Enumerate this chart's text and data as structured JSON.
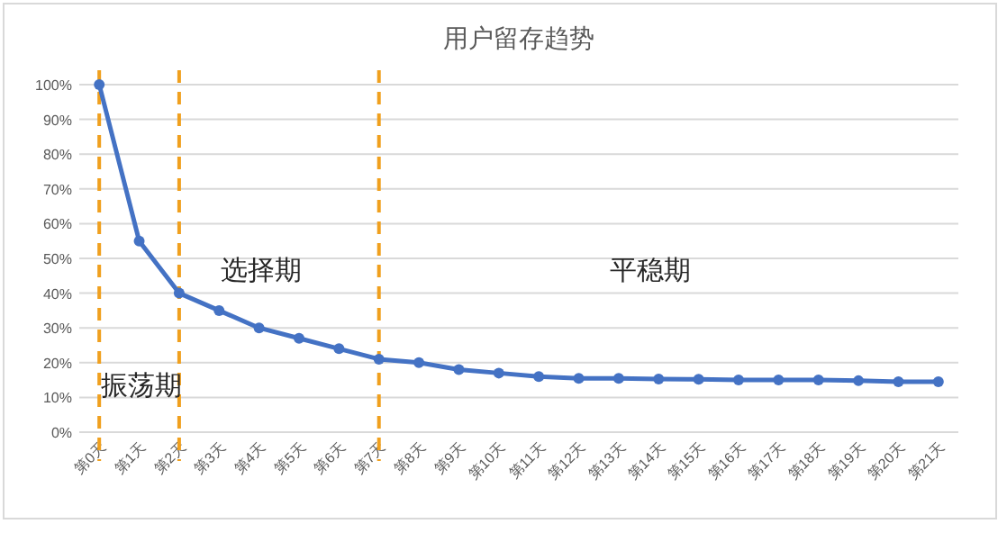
{
  "chart_data": {
    "type": "line",
    "title": "用户留存趋势",
    "categories": [
      "第0天",
      "第1天",
      "第2天",
      "第3天",
      "第4天",
      "第5天",
      "第6天",
      "第7天",
      "第8天",
      "第9天",
      "第10天",
      "第11天",
      "第12天",
      "第13天",
      "第14天",
      "第15天",
      "第16天",
      "第17天",
      "第18天",
      "第19天",
      "第20天",
      "第21天"
    ],
    "series": [
      {
        "color": "#4472c4",
        "values": [
          100,
          55,
          40,
          35,
          30,
          27,
          24,
          21,
          20,
          18,
          17,
          16,
          15.5,
          15.5,
          15.3,
          15.2,
          15,
          15,
          15,
          14.8,
          14.5,
          14.5
        ]
      }
    ],
    "ylim": [
      0,
      100
    ],
    "yticks": [
      {
        "value": 0,
        "label": "0%"
      },
      {
        "value": 10,
        "label": "10%"
      },
      {
        "value": 20,
        "label": "20%"
      },
      {
        "value": 30,
        "label": "30%"
      },
      {
        "value": 40,
        "label": "40%"
      },
      {
        "value": 50,
        "label": "50%"
      },
      {
        "value": 60,
        "label": "60%"
      },
      {
        "value": 70,
        "label": "70%"
      },
      {
        "value": 80,
        "label": "80%"
      },
      {
        "value": 90,
        "label": "90%"
      },
      {
        "value": 100,
        "label": "100%"
      }
    ],
    "grid": "y",
    "marker": "circle",
    "line_style": "solid",
    "ref_lines": [
      {
        "axis": "x",
        "value": "第0天",
        "color": "#f0a01e",
        "line_style": "dashed"
      },
      {
        "axis": "x",
        "value": "第2天",
        "color": "#f0a01e",
        "line_style": "dashed"
      },
      {
        "axis": "x",
        "value": "第7天",
        "color": "#f0a01e",
        "line_style": "dashed"
      }
    ],
    "annotations": [
      "振荡期",
      "选择期",
      "平稳期"
    ]
  }
}
